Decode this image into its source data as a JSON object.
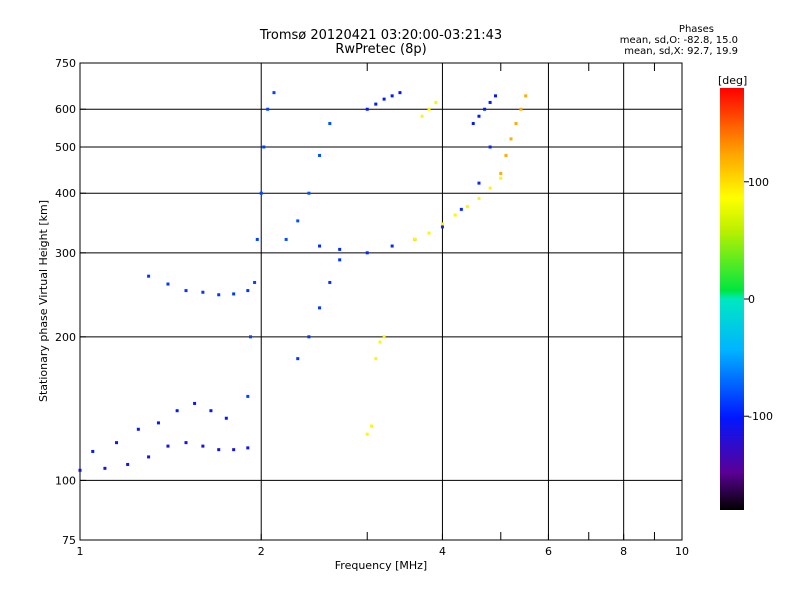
{
  "header": {
    "title_line1": "Tromsø 20120421 03:20:00-03:21:43",
    "title_line2": "RwPretec (8p)",
    "stats_title": "Phases",
    "stats_o": "mean, sd,O: -82.8, 15.0",
    "stats_x": "mean, sd,X:  92.7, 19.9"
  },
  "chart_data": {
    "type": "scatter",
    "xlabel": "Frequency [MHz]",
    "ylabel": "Stationary phase Virtual Height [km]",
    "x_scale": "log",
    "y_scale": "log",
    "xlim": [
      1,
      10
    ],
    "ylim": [
      75,
      750
    ],
    "x_ticks": [
      1,
      2,
      4,
      6,
      8,
      10
    ],
    "x_tick_labels": [
      "1",
      "2",
      "4",
      "6",
      "8",
      "10"
    ],
    "x_minor_ticks": [
      3,
      5,
      7,
      9
    ],
    "y_ticks": [
      75,
      100,
      200,
      300,
      400,
      500,
      600,
      750
    ],
    "y_tick_labels": [
      "75",
      "100",
      "200",
      "300",
      "400",
      "500",
      "600",
      "750"
    ],
    "grid": true,
    "colorbar": {
      "label": "[deg]",
      "range": [
        -180,
        180
      ],
      "ticks": [
        100,
        0,
        -100
      ],
      "tick_labels": [
        "100",
        "0",
        "-100"
      ]
    },
    "series": [
      {
        "phase": -110,
        "x": [
          1.0,
          1.1,
          1.2,
          1.3,
          1.4,
          1.5,
          1.6,
          1.7,
          1.8,
          1.9
        ],
        "y": [
          105,
          106,
          108,
          112,
          118,
          120,
          118,
          116,
          116,
          117
        ]
      },
      {
        "phase": -100,
        "x": [
          1.05,
          1.15,
          1.25,
          1.35,
          1.45,
          1.55,
          1.65,
          1.75
        ],
        "y": [
          115,
          120,
          128,
          132,
          140,
          145,
          140,
          135
        ]
      },
      {
        "phase": -90,
        "x": [
          1.3,
          1.4,
          1.5,
          1.6,
          1.7,
          1.8,
          1.9
        ],
        "y": [
          268,
          258,
          250,
          248,
          245,
          246,
          250
        ]
      },
      {
        "phase": -85,
        "x": [
          1.9,
          1.92,
          1.95,
          1.97,
          2.0,
          2.02,
          2.05,
          2.1
        ],
        "y": [
          150,
          200,
          260,
          320,
          400,
          500,
          600,
          650
        ]
      },
      {
        "phase": -80,
        "x": [
          2.2,
          2.3,
          2.4,
          2.5,
          2.6
        ],
        "y": [
          320,
          350,
          400,
          480,
          560
        ]
      },
      {
        "phase": -90,
        "x": [
          2.3,
          2.4,
          2.5,
          2.6,
          2.7
        ],
        "y": [
          180,
          200,
          230,
          260,
          290
        ]
      },
      {
        "phase": -95,
        "x": [
          2.5,
          2.7,
          3.0,
          3.3,
          3.6,
          4.0,
          4.3,
          4.6,
          4.8
        ],
        "y": [
          310,
          305,
          300,
          310,
          320,
          340,
          370,
          420,
          500
        ]
      },
      {
        "phase": -100,
        "x": [
          3.0,
          3.1,
          3.2,
          3.3,
          3.4
        ],
        "y": [
          600,
          615,
          630,
          640,
          650
        ]
      },
      {
        "phase": -100,
        "x": [
          4.5,
          4.6,
          4.7,
          4.8,
          4.9
        ],
        "y": [
          560,
          580,
          600,
          620,
          640
        ]
      },
      {
        "phase": 90,
        "x": [
          3.0,
          3.05,
          3.1,
          3.15,
          3.2
        ],
        "y": [
          125,
          130,
          180,
          195,
          200
        ]
      },
      {
        "phase": 90,
        "x": [
          3.6,
          3.8,
          4.0,
          4.2,
          4.4,
          4.6,
          4.8,
          5.0
        ],
        "y": [
          320,
          330,
          345,
          360,
          375,
          390,
          410,
          430
        ]
      },
      {
        "phase": 120,
        "x": [
          5.0,
          5.1,
          5.2,
          5.3,
          5.4,
          5.5
        ],
        "y": [
          440,
          480,
          520,
          560,
          600,
          640
        ]
      },
      {
        "phase": 90,
        "x": [
          3.7,
          3.8,
          3.9
        ],
        "y": [
          580,
          600,
          620
        ]
      }
    ]
  }
}
